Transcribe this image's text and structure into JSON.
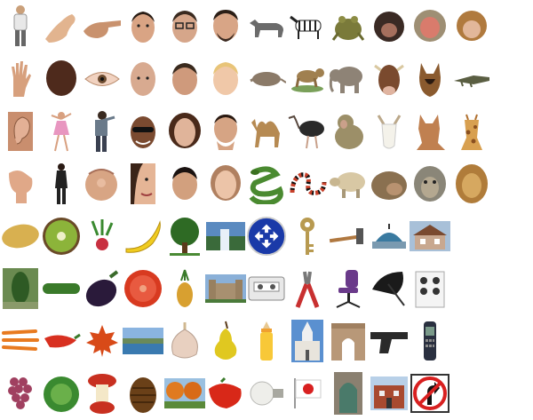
{
  "rows": [
    [
      "person-standing",
      "hand-ok",
      "hand-pointing",
      "man-face",
      "man-glasses-face",
      "man-beard-face",
      "wolf",
      "zebra",
      "frog",
      "monkey",
      "macaque",
      "baby-monkey"
    ],
    [
      "open-hand",
      "back-of-head",
      "eye",
      "bald-man-face",
      "man-face-2",
      "child-face",
      "armadillo",
      "monkey-walking",
      "elephant",
      "cow",
      "german-shepherd",
      "crocodile"
    ],
    [
      "ear",
      "dancer",
      "man-back",
      "man-sunglasses-face",
      "woman-face",
      "man-hand-chin",
      "camel",
      "ostrich",
      "baboon",
      "goat",
      "great-dane",
      "giraffe"
    ],
    [
      "hand-fist",
      "woman-standing",
      "finger-pointing",
      "woman-half-face",
      "man-face-3",
      "woman-face-2",
      "green-snake",
      "coral-snake",
      "sheep",
      "monkey-head",
      "ape-face",
      "lion"
    ],
    [
      "potato",
      "kiwi",
      "radish",
      "banana",
      "tree",
      "waterfall",
      "roundabout-sign",
      "key",
      "hammer",
      "dome-building",
      "house"
    ],
    [
      "shrub",
      "cucumber",
      "eggplant",
      "tomato-slice",
      "pineapple",
      "castle",
      "cassette",
      "pliers",
      "office-chair",
      "umbrella",
      "stove"
    ],
    [
      "carrots",
      "red-pepper",
      "maple-leaf",
      "lake",
      "garlic",
      "pear",
      "baby-bottle",
      "church",
      "arc-de-triomphe",
      "pistol",
      "mobile-phone"
    ],
    [
      "grapes",
      "lettuce",
      "apple-core",
      "pine-cone",
      "orange-tree",
      "bell-pepper",
      "light-bulb",
      "japan-flag",
      "gothic-door",
      "brick-house",
      "no-turn-sign"
    ]
  ]
}
